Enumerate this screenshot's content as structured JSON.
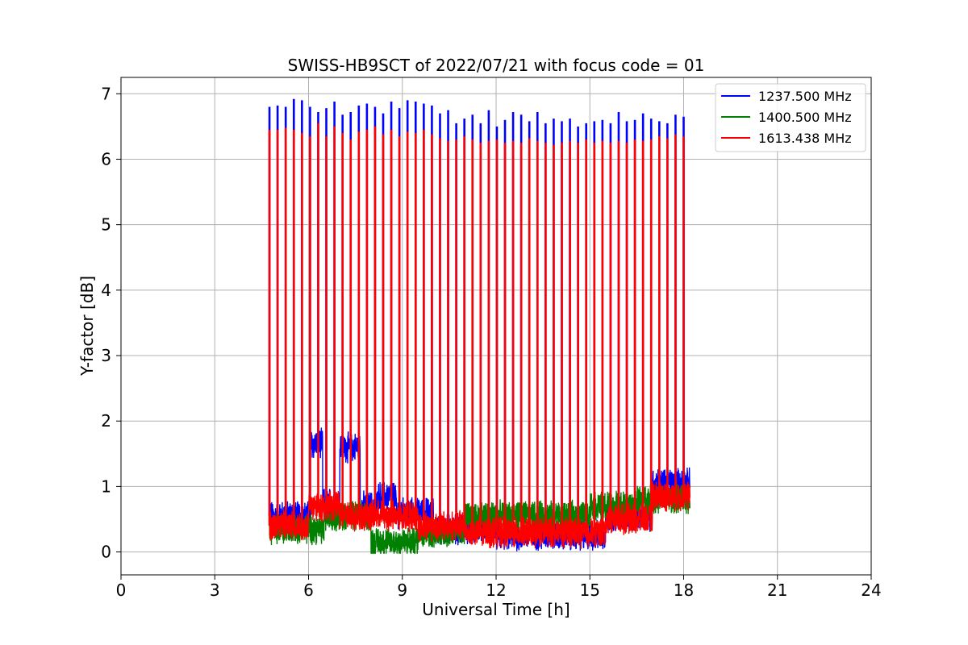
{
  "chart_data": {
    "type": "line",
    "title": "SWISS-HB9SCT of 2022/07/21 with focus code = 01",
    "xlabel": "Universal Time [h]",
    "ylabel": "Y-factor [dB]",
    "xlim": [
      0,
      24
    ],
    "ylim": [
      -0.35,
      7.25
    ],
    "xticks": [
      0,
      3,
      6,
      9,
      12,
      15,
      18,
      21,
      24
    ],
    "yticks": [
      0,
      1,
      2,
      3,
      4,
      5,
      6,
      7
    ],
    "grid": true,
    "legend_position": "top-right",
    "time_range": [
      4.75,
      18.2
    ],
    "series": [
      {
        "name": "1237.500 MHz",
        "color": "#0000ff",
        "spike_peaks": [
          6.8,
          6.82,
          6.8,
          6.92,
          6.9,
          6.8,
          6.72,
          6.78,
          6.88,
          6.68,
          6.72,
          6.82,
          6.85,
          6.8,
          6.7,
          6.88,
          6.78,
          6.9,
          6.88,
          6.85,
          6.82,
          6.7,
          6.75,
          6.55,
          6.62,
          6.68,
          6.55,
          6.75,
          6.5,
          6.6,
          6.72,
          6.68,
          6.58,
          6.72,
          6.55,
          6.62,
          6.58,
          6.62,
          6.5,
          6.55,
          6.58,
          6.6,
          6.55,
          6.72,
          6.58,
          6.6,
          6.7,
          6.62,
          6.58,
          6.55,
          6.68,
          6.65
        ],
        "baseline_segments": [
          {
            "start": 4.75,
            "end": 6.05,
            "level": 0.55
          },
          {
            "start": 6.05,
            "end": 6.45,
            "level": 1.65
          },
          {
            "start": 6.45,
            "end": 7.0,
            "level": 0.75
          },
          {
            "start": 7.0,
            "end": 7.65,
            "level": 1.6
          },
          {
            "start": 7.65,
            "end": 8.2,
            "level": 0.7
          },
          {
            "start": 8.2,
            "end": 8.8,
            "level": 0.85
          },
          {
            "start": 8.8,
            "end": 10.0,
            "level": 0.6
          },
          {
            "start": 10.0,
            "end": 12.0,
            "level": 0.35
          },
          {
            "start": 12.0,
            "end": 15.5,
            "level": 0.25
          },
          {
            "start": 15.5,
            "end": 17.0,
            "level": 0.55
          },
          {
            "start": 17.0,
            "end": 18.2,
            "level": 1.05
          }
        ]
      },
      {
        "name": "1400.500 MHz",
        "color": "#008000",
        "baseline_segments": [
          {
            "start": 4.75,
            "end": 6.5,
            "level": 0.35
          },
          {
            "start": 6.5,
            "end": 8.0,
            "level": 0.55
          },
          {
            "start": 8.0,
            "end": 9.5,
            "level": 0.15
          },
          {
            "start": 9.5,
            "end": 11.0,
            "level": 0.3
          },
          {
            "start": 11.0,
            "end": 15.0,
            "level": 0.55
          },
          {
            "start": 15.0,
            "end": 16.5,
            "level": 0.7
          },
          {
            "start": 16.5,
            "end": 18.2,
            "level": 0.8
          }
        ]
      },
      {
        "name": "1613.438 MHz",
        "color": "#ff0000",
        "spike_peaks": [
          6.45,
          6.45,
          6.48,
          6.45,
          6.4,
          6.35,
          6.55,
          6.35,
          6.5,
          6.4,
          6.3,
          6.42,
          6.45,
          6.5,
          6.38,
          6.45,
          6.35,
          6.42,
          6.4,
          6.45,
          6.38,
          6.32,
          6.28,
          6.3,
          6.35,
          6.3,
          6.25,
          6.28,
          6.3,
          6.25,
          6.28,
          6.25,
          6.32,
          6.28,
          6.25,
          6.22,
          6.25,
          6.28,
          6.25,
          6.3,
          6.25,
          6.28,
          6.25,
          6.28,
          6.25,
          6.3,
          6.28,
          6.3,
          6.35,
          6.32,
          6.38,
          6.35
        ],
        "baseline_segments": [
          {
            "start": 4.75,
            "end": 6.0,
            "level": 0.4
          },
          {
            "start": 6.0,
            "end": 7.0,
            "level": 0.7
          },
          {
            "start": 7.0,
            "end": 7.8,
            "level": 0.55
          },
          {
            "start": 7.8,
            "end": 9.5,
            "level": 0.55
          },
          {
            "start": 9.5,
            "end": 11.0,
            "level": 0.4
          },
          {
            "start": 11.0,
            "end": 15.5,
            "level": 0.3
          },
          {
            "start": 15.5,
            "end": 17.0,
            "level": 0.5
          },
          {
            "start": 17.0,
            "end": 18.2,
            "level": 0.85
          }
        ]
      }
    ]
  }
}
